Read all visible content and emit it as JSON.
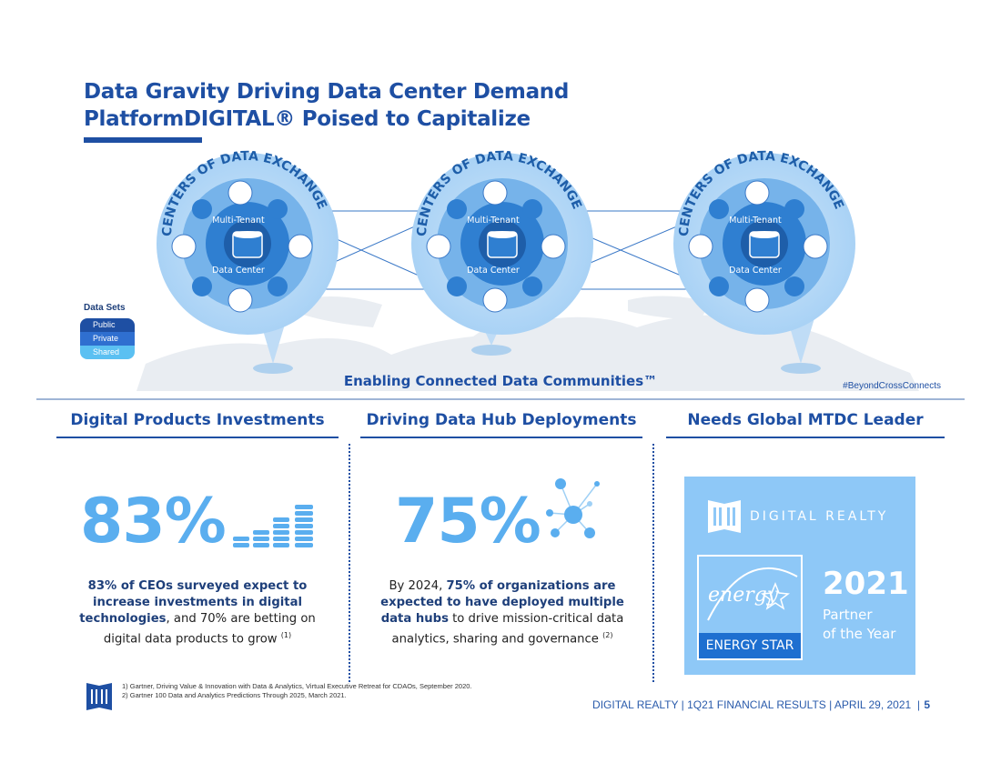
{
  "title": {
    "line1": "Data Gravity Driving Data Center Demand",
    "line2": "PlatformDIGITAL® Poised to Capitalize"
  },
  "hubs": {
    "arc_text": "CENTERS OF DATA EXCHANGE",
    "inner_top": "Multi-Tenant",
    "inner_bottom": "Data Center",
    "icons": [
      "gear-icon",
      "cloud-icon",
      "document-search-icon",
      "cloud-icon",
      "network-icon",
      "database-icon"
    ]
  },
  "datasets": {
    "label": "Data Sets",
    "rows": [
      "Public",
      "Private",
      "Shared"
    ]
  },
  "enabling": "Enabling Connected Data Communities™",
  "hashtag": "#BeyondCrossConnects",
  "columns": {
    "col1": {
      "heading": "Digital Products Investments",
      "stat": "83%",
      "text_bold": "83% of CEOs surveyed expect to increase investments in digital technologies",
      "text_rest": ", and 70% are betting on digital data products to grow ",
      "ref": "(1)"
    },
    "col2": {
      "heading": "Driving Data Hub Deployments",
      "stat": "75%",
      "text_pre": "By 2024, ",
      "text_bold": "75% of organizations are expected to have deployed multiple data hubs",
      "text_rest": " to drive mission-critical data analytics, sharing and governance ",
      "ref": "(2)"
    },
    "col3": {
      "heading": "Needs Global MTDC Leader",
      "brand": "DIGITAL REALTY",
      "energy_star_script": "energy",
      "energy_star_label": "ENERGY STAR",
      "year": "2021",
      "award_line1": "Partner",
      "award_line2": "of the Year"
    }
  },
  "footnotes": [
    "1)   Gartner, Driving Value & Innovation with Data & Analytics,  Virtual Executive Retreat for CDAOs, September 2020.",
    "2)   Gartner 100 Data and Analytics Predictions Through 2025, March 2021."
  ],
  "footer": "DIGITAL REALTY | 1Q21 FINANCIAL RESULTS | APRIL 29, 2021",
  "page_number": "5",
  "colors": {
    "primary": "#1e4fa3",
    "accent_light": "#5aaeef",
    "award_bg": "#8ec8f7"
  }
}
